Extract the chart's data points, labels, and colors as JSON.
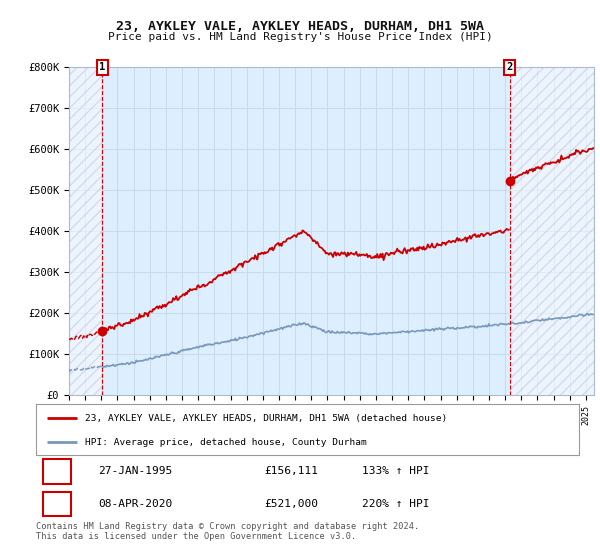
{
  "title": "23, AYKLEY VALE, AYKLEY HEADS, DURHAM, DH1 5WA",
  "subtitle": "Price paid vs. HM Land Registry's House Price Index (HPI)",
  "ylim": [
    0,
    800000
  ],
  "yticks": [
    0,
    100000,
    200000,
    300000,
    400000,
    500000,
    600000,
    700000,
    800000
  ],
  "ytick_labels": [
    "£0",
    "£100K",
    "£200K",
    "£300K",
    "£400K",
    "£500K",
    "£600K",
    "£700K",
    "£800K"
  ],
  "background_color": "#ffffff",
  "plot_bg_color": "#ddeeff",
  "grid_color": "#c5d8e8",
  "sale1_x": 1995.07,
  "sale1_y": 156111,
  "sale2_x": 2020.27,
  "sale2_y": 521000,
  "sale1_label": "1",
  "sale2_label": "2",
  "legend_line1": "23, AYKLEY VALE, AYKLEY HEADS, DURHAM, DH1 5WA (detached house)",
  "legend_line2": "HPI: Average price, detached house, County Durham",
  "table_row1": [
    "1",
    "27-JAN-1995",
    "£156,111",
    "133% ↑ HPI"
  ],
  "table_row2": [
    "2",
    "08-APR-2020",
    "£521,000",
    "220% ↑ HPI"
  ],
  "footer": "Contains HM Land Registry data © Crown copyright and database right 2024.\nThis data is licensed under the Open Government Licence v3.0.",
  "line_color_red": "#cc0000",
  "line_color_blue": "#7799bb",
  "xlim_start": 1993,
  "xlim_end": 2025.5
}
